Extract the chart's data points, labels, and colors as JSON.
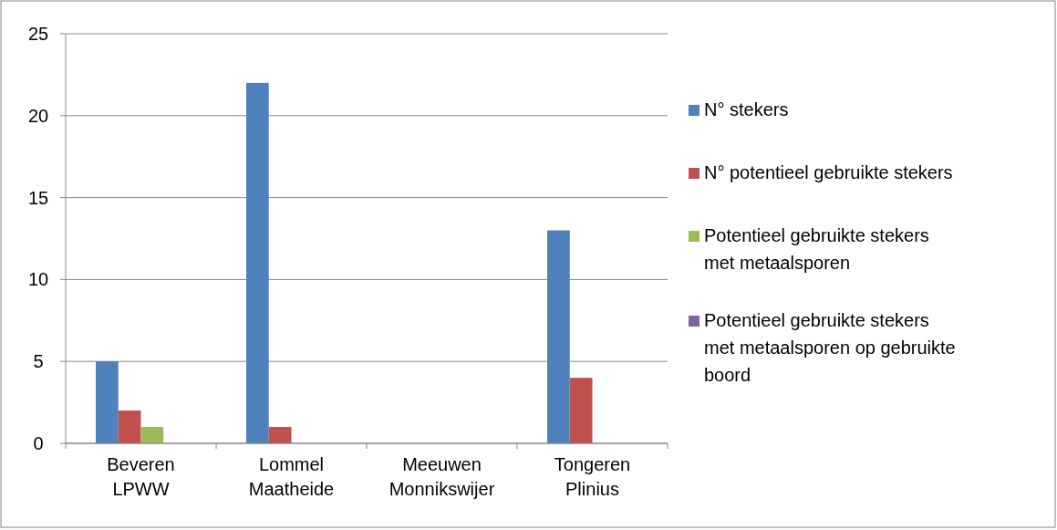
{
  "chart_data": {
    "type": "bar",
    "categories": [
      "Beveren LPWW",
      "Lommel Maatheide",
      "Meeuwen Monnikswijer",
      "Tongeren Plinius"
    ],
    "series": [
      {
        "name": "N° stekers",
        "color": "#4f81bd",
        "values": [
          5,
          22,
          0,
          13
        ]
      },
      {
        "name": "N° potentieel gebruikte stekers",
        "color": "#c0504d",
        "values": [
          2,
          1,
          0,
          4
        ]
      },
      {
        "name": "Potentieel gebruikte stekers met metaalsporen",
        "color": "#9bbb59",
        "values": [
          1,
          0,
          0,
          0
        ]
      },
      {
        "name": "Potentieel gebruikte stekers met metaalsporen op gebruikte boord",
        "color": "#8064a2",
        "values": [
          0,
          0,
          0,
          0
        ]
      }
    ],
    "ylim": [
      0,
      25
    ],
    "yticks": [
      0,
      5,
      10,
      15,
      20,
      25
    ],
    "grid": "y",
    "legend": "right"
  }
}
